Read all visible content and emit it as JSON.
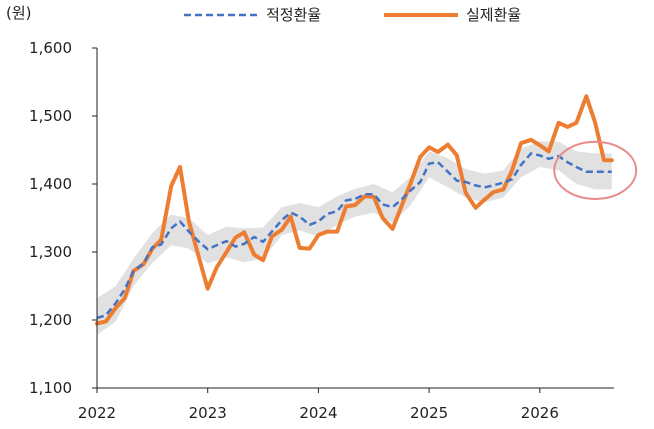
{
  "chart_data": {
    "type": "line",
    "title": "",
    "xlabel": "",
    "ylabel": "(원)",
    "ylim": [
      1100,
      1600
    ],
    "yticks": [
      "1,100",
      "1,200",
      "1,300",
      "1,400",
      "1,500",
      "1,600"
    ],
    "ytick_values": [
      1100,
      1200,
      1300,
      1400,
      1500,
      1600
    ],
    "xlim": [
      2022.0,
      2026.67
    ],
    "xticks": [
      "2022",
      "2023",
      "2024",
      "2025",
      "2026"
    ],
    "xtick_values": [
      2022,
      2023,
      2024,
      2025,
      2026
    ],
    "grid": false,
    "legend": "top",
    "colors": {
      "fair": "#4472C4",
      "actual": "#ED7D31",
      "band": "#DCDCDC",
      "highlight": "#E88A8A",
      "axis": "#222222"
    },
    "series": [
      {
        "name": "적정환율",
        "style": "dashed",
        "x": [
          2022.0,
          2022.08,
          2022.17,
          2022.25,
          2022.33,
          2022.42,
          2022.5,
          2022.58,
          2022.67,
          2022.75,
          2022.83,
          2022.92,
          2023.0,
          2023.08,
          2023.17,
          2023.25,
          2023.33,
          2023.42,
          2023.5,
          2023.58,
          2023.67,
          2023.75,
          2023.83,
          2023.92,
          2024.0,
          2024.08,
          2024.17,
          2024.25,
          2024.33,
          2024.42,
          2024.5,
          2024.58,
          2024.67,
          2024.75,
          2024.83,
          2024.92,
          2025.0,
          2025.08,
          2025.17,
          2025.25,
          2025.33,
          2025.42,
          2025.5,
          2025.58,
          2025.67,
          2025.75,
          2025.83,
          2025.92,
          2026.0,
          2026.08,
          2026.17,
          2026.25,
          2026.33,
          2026.42,
          2026.5,
          2026.58,
          2026.65
        ],
        "y": [
          1203,
          1207,
          1225,
          1245,
          1272,
          1283,
          1307,
          1311,
          1335,
          1345,
          1330,
          1315,
          1304,
          1310,
          1316,
          1308,
          1312,
          1322,
          1315,
          1330,
          1347,
          1358,
          1352,
          1340,
          1345,
          1356,
          1360,
          1376,
          1378,
          1385,
          1385,
          1370,
          1366,
          1377,
          1390,
          1403,
          1430,
          1432,
          1418,
          1405,
          1403,
          1398,
          1395,
          1398,
          1402,
          1407,
          1428,
          1445,
          1442,
          1437,
          1441,
          1432,
          1425,
          1418,
          1418,
          1418,
          1418
        ]
      },
      {
        "name": "실제환율",
        "style": "solid",
        "x": [
          2022.0,
          2022.08,
          2022.17,
          2022.25,
          2022.33,
          2022.42,
          2022.5,
          2022.58,
          2022.67,
          2022.75,
          2022.83,
          2022.92,
          2023.0,
          2023.08,
          2023.17,
          2023.25,
          2023.33,
          2023.42,
          2023.5,
          2023.58,
          2023.67,
          2023.75,
          2023.83,
          2023.92,
          2024.0,
          2024.08,
          2024.17,
          2024.25,
          2024.33,
          2024.42,
          2024.5,
          2024.58,
          2024.67,
          2024.75,
          2024.83,
          2024.92,
          2025.0,
          2025.08,
          2025.17,
          2025.25,
          2025.33,
          2025.42,
          2025.5,
          2025.58,
          2025.67,
          2025.75,
          2025.83,
          2025.92,
          2026.0,
          2026.08,
          2026.17,
          2026.25,
          2026.33,
          2026.42,
          2026.5,
          2026.58,
          2026.65
        ],
        "y": [
          1195,
          1198,
          1218,
          1232,
          1272,
          1282,
          1305,
          1318,
          1397,
          1425,
          1345,
          1292,
          1246,
          1277,
          1300,
          1321,
          1329,
          1296,
          1288,
          1323,
          1333,
          1352,
          1306,
          1305,
          1325,
          1330,
          1330,
          1367,
          1369,
          1382,
          1381,
          1350,
          1334,
          1367,
          1400,
          1440,
          1454,
          1447,
          1458,
          1442,
          1387,
          1365,
          1377,
          1388,
          1392,
          1420,
          1460,
          1465,
          1457,
          1448,
          1490,
          1484,
          1490,
          1529,
          1490,
          1435,
          1435
        ]
      }
    ],
    "band": {
      "x": [
        2022.0,
        2022.17,
        2022.33,
        2022.5,
        2022.67,
        2022.83,
        2023.0,
        2023.17,
        2023.33,
        2023.5,
        2023.67,
        2023.83,
        2024.0,
        2024.17,
        2024.33,
        2024.5,
        2024.67,
        2024.83,
        2025.0,
        2025.17,
        2025.33,
        2025.5,
        2025.67,
        2025.83,
        2026.0,
        2026.17,
        2026.33,
        2026.5,
        2026.65
      ],
      "upper": [
        1232,
        1250,
        1290,
        1328,
        1355,
        1350,
        1325,
        1337,
        1335,
        1336,
        1366,
        1372,
        1366,
        1382,
        1393,
        1400,
        1388,
        1410,
        1448,
        1438,
        1422,
        1415,
        1420,
        1452,
        1463,
        1462,
        1448,
        1445,
        1445
      ],
      "lower": [
        1178,
        1198,
        1250,
        1284,
        1310,
        1305,
        1283,
        1292,
        1285,
        1290,
        1325,
        1332,
        1322,
        1340,
        1352,
        1358,
        1343,
        1368,
        1410,
        1395,
        1380,
        1373,
        1380,
        1410,
        1425,
        1420,
        1400,
        1392,
        1392
      ]
    },
    "annotation": {
      "type": "ellipse",
      "note": "highlight on latest period",
      "cx": 2026.5,
      "cy": 1420,
      "rx_years": 0.37,
      "ry_won": 42
    }
  }
}
